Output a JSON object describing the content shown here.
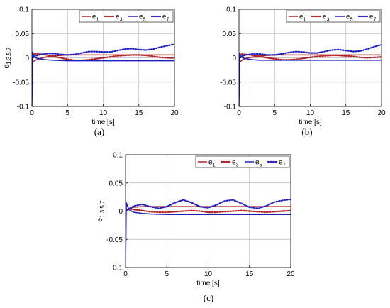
{
  "chart_data": [
    {
      "id": "a",
      "type": "line",
      "panel_label": "(a)",
      "xlabel": "time [s]",
      "ylabel": "e1,3,5,7",
      "ylabel_main": "e",
      "ylabel_sub": "1,3,5,7",
      "xlim": [
        0,
        20
      ],
      "ylim": [
        -0.1,
        0.1
      ],
      "xticks": [
        0,
        5,
        10,
        15,
        20
      ],
      "yticks": [
        -0.1,
        -0.05,
        0,
        0.05,
        0.1
      ],
      "grid": true,
      "legend_position": "top-right",
      "series": [
        {
          "name": "e1",
          "base": "e",
          "sub": "1",
          "color": "#b22222",
          "style": "solid",
          "x": [
            0,
            0.15,
            0.5,
            1,
            2,
            3,
            4,
            5,
            6,
            8,
            10,
            12,
            14,
            16,
            18,
            20
          ],
          "y": [
            0,
            -0.008,
            -0.005,
            -0.002,
            0.002,
            0.004,
            0.005,
            0.006,
            0.006,
            0.006,
            0.006,
            0.006,
            0.006,
            0.006,
            0.006,
            0.006
          ]
        },
        {
          "name": "e3",
          "base": "e",
          "sub": "3",
          "color": "#b22222",
          "style": "dotted",
          "x": [
            0,
            1,
            2,
            3,
            4,
            5,
            6,
            7,
            8,
            9,
            10,
            11,
            12,
            13,
            14,
            15,
            16,
            17,
            18,
            19,
            20
          ],
          "y": [
            0.008,
            0.008,
            0.006,
            0.003,
            0.0,
            -0.003,
            -0.005,
            -0.005,
            -0.004,
            -0.002,
            0.0,
            0.002,
            0.004,
            0.005,
            0.006,
            0.006,
            0.005,
            0.003,
            0.001,
            0.0,
            0.0
          ]
        },
        {
          "name": "e5",
          "base": "e",
          "sub": "5",
          "color": "#1f1fbf",
          "style": "solid",
          "x": [
            0,
            0.1,
            0.25,
            0.5,
            1,
            2,
            3,
            5,
            8,
            12,
            16,
            20
          ],
          "y": [
            -0.1,
            0.012,
            0.004,
            0.0,
            -0.002,
            -0.004,
            -0.005,
            -0.006,
            -0.006,
            -0.006,
            -0.006,
            -0.006
          ]
        },
        {
          "name": "e7",
          "base": "e",
          "sub": "7",
          "color": "#1f1fbf",
          "style": "dotted",
          "x": [
            0,
            0.5,
            1,
            2,
            3,
            4,
            5,
            6,
            7,
            8,
            9,
            10,
            11,
            12,
            13,
            14,
            15,
            16,
            17,
            18,
            19,
            20
          ],
          "y": [
            0.0,
            0.004,
            0.006,
            0.009,
            0.009,
            0.007,
            0.006,
            0.007,
            0.01,
            0.013,
            0.013,
            0.012,
            0.012,
            0.015,
            0.018,
            0.019,
            0.017,
            0.016,
            0.018,
            0.022,
            0.025,
            0.028
          ]
        }
      ]
    },
    {
      "id": "b",
      "type": "line",
      "panel_label": "(b)",
      "xlabel": "time [s]",
      "ylabel": "",
      "ylabel_main": "",
      "ylabel_sub": "",
      "xlim": [
        0,
        20
      ],
      "ylim": [
        -0.1,
        0.1
      ],
      "xticks": [
        0,
        5,
        10,
        15,
        20
      ],
      "yticks": [
        -0.1,
        -0.05,
        0,
        0.05,
        0.1
      ],
      "grid": true,
      "legend_position": "top-right",
      "series": [
        {
          "name": "e1",
          "base": "e",
          "sub": "1",
          "color": "#b22222",
          "style": "solid",
          "x": [
            0,
            0.15,
            0.5,
            1,
            2,
            3,
            4,
            5,
            6,
            8,
            10,
            12,
            14,
            16,
            18,
            20
          ],
          "y": [
            0,
            -0.008,
            -0.004,
            -0.001,
            0.002,
            0.004,
            0.005,
            0.006,
            0.006,
            0.006,
            0.006,
            0.006,
            0.006,
            0.006,
            0.006,
            0.006
          ]
        },
        {
          "name": "e3",
          "base": "e",
          "sub": "3",
          "color": "#b22222",
          "style": "dotted",
          "x": [
            0,
            1,
            2,
            3,
            4,
            5,
            6,
            7,
            8,
            9,
            10,
            11,
            12,
            13,
            14,
            15,
            16,
            17,
            18,
            19,
            20
          ],
          "y": [
            0.008,
            0.007,
            0.005,
            0.003,
            0.0,
            -0.002,
            -0.004,
            -0.004,
            -0.003,
            -0.001,
            0.001,
            0.003,
            0.004,
            0.005,
            0.005,
            0.004,
            0.003,
            0.001,
            0.0,
            0.001,
            0.002
          ]
        },
        {
          "name": "e5",
          "base": "e",
          "sub": "5",
          "color": "#1f1fbf",
          "style": "solid",
          "x": [
            0,
            0.1,
            0.25,
            0.5,
            1,
            2,
            3,
            5,
            8,
            12,
            16,
            20
          ],
          "y": [
            -0.1,
            0.01,
            0.003,
            0.0,
            -0.002,
            -0.004,
            -0.005,
            -0.005,
            -0.005,
            -0.005,
            -0.005,
            -0.005
          ]
        },
        {
          "name": "e7",
          "base": "e",
          "sub": "7",
          "color": "#1f1fbf",
          "style": "dotted",
          "x": [
            0,
            0.5,
            1,
            2,
            3,
            4,
            5,
            6,
            7,
            8,
            9,
            10,
            11,
            12,
            13,
            14,
            15,
            16,
            17,
            18,
            19,
            20
          ],
          "y": [
            0.0,
            0.004,
            0.006,
            0.008,
            0.008,
            0.006,
            0.006,
            0.008,
            0.011,
            0.013,
            0.012,
            0.01,
            0.01,
            0.013,
            0.016,
            0.017,
            0.015,
            0.013,
            0.014,
            0.018,
            0.023,
            0.027
          ]
        }
      ]
    },
    {
      "id": "c",
      "type": "line",
      "panel_label": "(c)",
      "xlabel": "time [s]",
      "ylabel": "e1,3,5,7",
      "ylabel_main": "e",
      "ylabel_sub": "1,3,5,7",
      "xlim": [
        0,
        20
      ],
      "ylim": [
        -0.1,
        0.1
      ],
      "xticks": [
        0,
        5,
        10,
        15,
        20
      ],
      "yticks": [
        -0.1,
        -0.05,
        0,
        0.05,
        0.1
      ],
      "grid": true,
      "legend_position": "top-right",
      "series": [
        {
          "name": "e1",
          "base": "e",
          "sub": "1",
          "color": "#b22222",
          "style": "solid",
          "x": [
            0,
            0.15,
            0.5,
            1,
            2,
            3,
            5,
            8,
            12,
            16,
            20
          ],
          "y": [
            0,
            0.002,
            0.005,
            0.007,
            0.008,
            0.008,
            0.008,
            0.008,
            0.008,
            0.008,
            0.008
          ]
        },
        {
          "name": "e3",
          "base": "e",
          "sub": "3",
          "color": "#b22222",
          "style": "dotted",
          "x": [
            0,
            0.5,
            1,
            2,
            3,
            4,
            5,
            6,
            7,
            8,
            9,
            10,
            11,
            12,
            13,
            14,
            15,
            16,
            17,
            18,
            19,
            20
          ],
          "y": [
            0.003,
            0.004,
            0.003,
            0.001,
            -0.001,
            -0.002,
            -0.002,
            -0.001,
            0.0,
            0.001,
            0.0,
            -0.002,
            -0.002,
            -0.001,
            0.0,
            0.001,
            0.0,
            -0.001,
            -0.002,
            -0.001,
            0.0,
            0.001
          ]
        },
        {
          "name": "e5",
          "base": "e",
          "sub": "5",
          "color": "#1f1fbf",
          "style": "solid",
          "x": [
            0,
            0.1,
            0.25,
            0.5,
            1,
            2,
            3,
            5,
            8,
            12,
            16,
            20
          ],
          "y": [
            -0.1,
            0.015,
            0.008,
            0.002,
            -0.002,
            -0.004,
            -0.005,
            -0.006,
            -0.006,
            -0.006,
            -0.006,
            -0.006
          ]
        },
        {
          "name": "e7",
          "base": "e",
          "sub": "7",
          "color": "#1f1fbf",
          "style": "dotted",
          "x": [
            0,
            0.5,
            1,
            2,
            3,
            4,
            5,
            6,
            7,
            8,
            9,
            10,
            11,
            12,
            13,
            14,
            15,
            16,
            17,
            18,
            19,
            20
          ],
          "y": [
            0.0,
            0.004,
            0.009,
            0.012,
            0.008,
            0.005,
            0.008,
            0.015,
            0.02,
            0.015,
            0.008,
            0.006,
            0.011,
            0.018,
            0.02,
            0.014,
            0.007,
            0.005,
            0.009,
            0.016,
            0.019,
            0.021
          ]
        }
      ]
    }
  ]
}
